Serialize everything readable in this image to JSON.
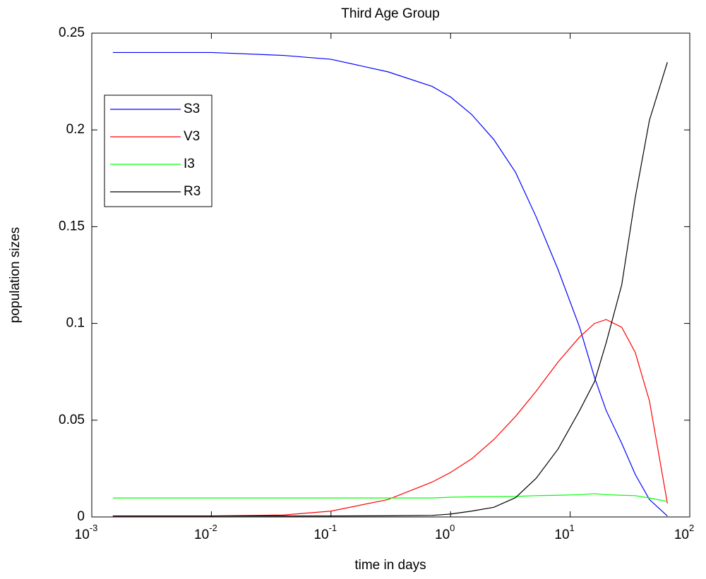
{
  "chart_data": {
    "type": "line",
    "title": "Third Age Group",
    "xlabel": "time in days",
    "ylabel": "population sizes",
    "xscale": "log",
    "x": [
      0.0015,
      0.01,
      0.04,
      0.1,
      0.3,
      0.7,
      1,
      1.5,
      2.3,
      3.5,
      5.2,
      7.9,
      12,
      16,
      20,
      27,
      35,
      46,
      65
    ],
    "series": [
      {
        "name": "S3",
        "color": "#0000ff",
        "values": [
          0.24,
          0.24,
          0.2385,
          0.2365,
          0.23,
          0.2225,
          0.217,
          0.208,
          0.195,
          0.178,
          0.155,
          0.128,
          0.098,
          0.072,
          0.055,
          0.038,
          0.022,
          0.009,
          0.0005
        ]
      },
      {
        "name": "V3",
        "color": "#ff0000",
        "values": [
          0.0005,
          0.0005,
          0.001,
          0.003,
          0.009,
          0.018,
          0.023,
          0.03,
          0.04,
          0.052,
          0.065,
          0.08,
          0.093,
          0.1,
          0.102,
          0.098,
          0.085,
          0.06,
          0.007
        ]
      },
      {
        "name": "I3",
        "color": "#00ff00",
        "values": [
          0.0098,
          0.0098,
          0.0098,
          0.0098,
          0.0098,
          0.0098,
          0.0102,
          0.0104,
          0.0105,
          0.0106,
          0.011,
          0.0112,
          0.0115,
          0.012,
          0.0115,
          0.0112,
          0.011,
          0.0098,
          0.008
        ]
      },
      {
        "name": "R3",
        "color": "#000000",
        "values": [
          0.0005,
          0.0005,
          0.0005,
          0.0005,
          0.0006,
          0.0008,
          0.0015,
          0.003,
          0.005,
          0.01,
          0.02,
          0.035,
          0.055,
          0.07,
          0.09,
          0.12,
          0.165,
          0.205,
          0.235
        ]
      }
    ],
    "xlim": [
      0.001,
      100
    ],
    "xticks": [
      {
        "value": 0.001,
        "label": "10",
        "exponent": "-3"
      },
      {
        "value": 0.01,
        "label": "10",
        "exponent": "-2"
      },
      {
        "value": 0.1,
        "label": "10",
        "exponent": "-1"
      },
      {
        "value": 1,
        "label": "10",
        "exponent": "0"
      },
      {
        "value": 10,
        "label": "10",
        "exponent": "1"
      },
      {
        "value": 100,
        "label": "10",
        "exponent": "2"
      }
    ],
    "ylim": [
      0,
      0.25
    ],
    "yticks": [
      0,
      0.05,
      0.1,
      0.15,
      0.2,
      0.25
    ],
    "grid": false,
    "legend": "upper left"
  }
}
